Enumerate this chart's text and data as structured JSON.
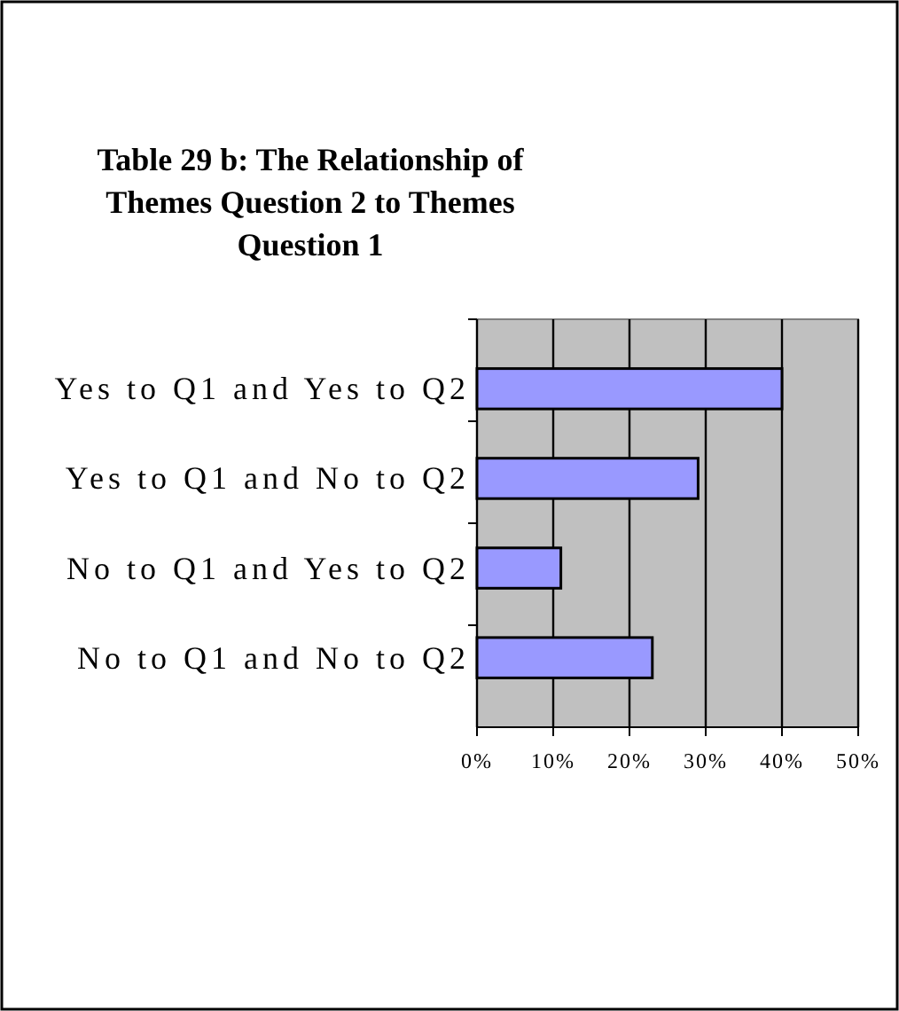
{
  "chart_data": {
    "type": "bar",
    "orientation": "horizontal",
    "title": "Table 29 b: The Relationship of Themes Question 2 to Themes Question 1",
    "categories": [
      "Yes to Q1 and Yes to Q2",
      "Yes to Q1 and No to Q2",
      "No to Q1 and Yes to Q2",
      "No to Q1 and No to Q2"
    ],
    "values": [
      40,
      29,
      11,
      23
    ],
    "color": "#9999ff",
    "xlim": [
      0,
      50
    ],
    "xticks": [
      {
        "value": 0,
        "label": "0%"
      },
      {
        "value": 10,
        "label": "10%"
      },
      {
        "value": 20,
        "label": "20%"
      },
      {
        "value": 30,
        "label": "30%"
      },
      {
        "value": 40,
        "label": "40%"
      },
      {
        "value": 50,
        "label": "50%"
      }
    ],
    "grid": "x",
    "legend": false
  }
}
